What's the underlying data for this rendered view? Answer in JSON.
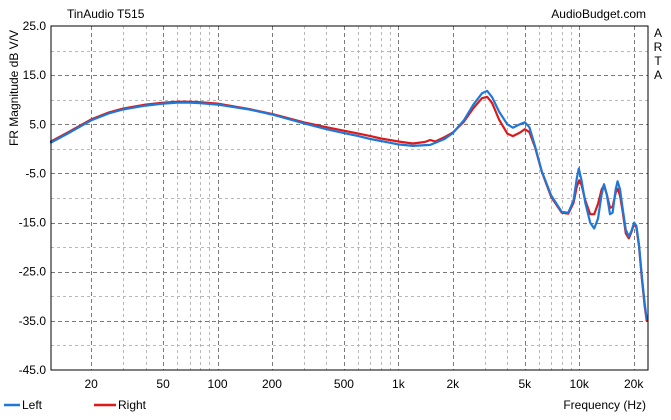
{
  "chart_data": {
    "type": "line",
    "title": "TinAudio T515",
    "source": "AudioBudget.com",
    "side_label": "ARTA",
    "xlabel": "Frequency (Hz)",
    "ylabel": "FR Magnitude dB V/V",
    "x_scale": "log",
    "xlim": [
      12,
      24000
    ],
    "ylim": [
      -45,
      25
    ],
    "x_ticks": [
      {
        "value": 20,
        "label": "20"
      },
      {
        "value": 50,
        "label": "50"
      },
      {
        "value": 100,
        "label": "100"
      },
      {
        "value": 200,
        "label": "200"
      },
      {
        "value": 500,
        "label": "500"
      },
      {
        "value": 1000,
        "label": "1k"
      },
      {
        "value": 2000,
        "label": "2k"
      },
      {
        "value": 5000,
        "label": "5k"
      },
      {
        "value": 10000,
        "label": "10k"
      },
      {
        "value": 20000,
        "label": "20k"
      }
    ],
    "y_ticks": [
      25.0,
      15.0,
      5.0,
      -5.0,
      -15.0,
      -25.0,
      -35.0,
      -45.0
    ],
    "y_tick_labels": [
      "25.0",
      "15.0",
      "5.0",
      "-5.0",
      "-15.0",
      "-25.0",
      "-35.0",
      "-45.0"
    ],
    "grid": true,
    "legend_position": "bottom-left",
    "series": [
      {
        "name": "Left",
        "color": "#1f78d8",
        "points": [
          [
            12,
            1.3
          ],
          [
            15,
            3.2
          ],
          [
            20,
            5.8
          ],
          [
            25,
            7.2
          ],
          [
            30,
            8.0
          ],
          [
            40,
            8.8
          ],
          [
            50,
            9.2
          ],
          [
            60,
            9.4
          ],
          [
            70,
            9.4
          ],
          [
            80,
            9.3
          ],
          [
            100,
            9.0
          ],
          [
            150,
            8.0
          ],
          [
            200,
            7.0
          ],
          [
            300,
            5.2
          ],
          [
            400,
            4.0
          ],
          [
            500,
            3.2
          ],
          [
            600,
            2.6
          ],
          [
            700,
            2.0
          ],
          [
            800,
            1.6
          ],
          [
            1000,
            0.9
          ],
          [
            1200,
            0.6
          ],
          [
            1500,
            0.8
          ],
          [
            1800,
            2.0
          ],
          [
            2000,
            3.2
          ],
          [
            2300,
            5.8
          ],
          [
            2600,
            9.0
          ],
          [
            2900,
            11.3
          ],
          [
            3100,
            11.8
          ],
          [
            3300,
            10.5
          ],
          [
            3600,
            7.6
          ],
          [
            4000,
            5.0
          ],
          [
            4300,
            4.3
          ],
          [
            4700,
            5.0
          ],
          [
            5000,
            5.4
          ],
          [
            5300,
            4.4
          ],
          [
            5700,
            0.5
          ],
          [
            6200,
            -4.5
          ],
          [
            7000,
            -9.5
          ],
          [
            8000,
            -12.8
          ],
          [
            8700,
            -13.0
          ],
          [
            9300,
            -10.5
          ],
          [
            9700,
            -6.0
          ],
          [
            9950,
            -4.0
          ],
          [
            10300,
            -6.5
          ],
          [
            10800,
            -11.0
          ],
          [
            11500,
            -15.0
          ],
          [
            12100,
            -16.2
          ],
          [
            12700,
            -14.2
          ],
          [
            13300,
            -9.3
          ],
          [
            13700,
            -7.2
          ],
          [
            14200,
            -9.3
          ],
          [
            14800,
            -13.3
          ],
          [
            15300,
            -13.0
          ],
          [
            15900,
            -8.2
          ],
          [
            16300,
            -6.6
          ],
          [
            16800,
            -8.2
          ],
          [
            17400,
            -12.2
          ],
          [
            18100,
            -16.5
          ],
          [
            18800,
            -17.8
          ],
          [
            19400,
            -16.8
          ],
          [
            20100,
            -15.0
          ],
          [
            20700,
            -15.7
          ],
          [
            21400,
            -19.5
          ],
          [
            22200,
            -26.0
          ],
          [
            23000,
            -31.5
          ],
          [
            23600,
            -34.6
          ]
        ]
      },
      {
        "name": "Right",
        "color": "#dd1a1a",
        "points": [
          [
            12,
            1.5
          ],
          [
            15,
            3.4
          ],
          [
            20,
            6.0
          ],
          [
            25,
            7.4
          ],
          [
            30,
            8.2
          ],
          [
            40,
            9.0
          ],
          [
            50,
            9.4
          ],
          [
            60,
            9.6
          ],
          [
            70,
            9.6
          ],
          [
            80,
            9.5
          ],
          [
            100,
            9.2
          ],
          [
            150,
            8.1
          ],
          [
            200,
            7.1
          ],
          [
            300,
            5.4
          ],
          [
            400,
            4.4
          ],
          [
            500,
            3.7
          ],
          [
            600,
            3.1
          ],
          [
            700,
            2.6
          ],
          [
            800,
            2.1
          ],
          [
            1000,
            1.5
          ],
          [
            1200,
            1.1
          ],
          [
            1400,
            1.4
          ],
          [
            1500,
            1.8
          ],
          [
            1600,
            1.5
          ],
          [
            1800,
            2.4
          ],
          [
            2000,
            3.3
          ],
          [
            2300,
            5.5
          ],
          [
            2600,
            8.3
          ],
          [
            2900,
            10.3
          ],
          [
            3100,
            10.6
          ],
          [
            3300,
            9.3
          ],
          [
            3600,
            6.0
          ],
          [
            4000,
            3.1
          ],
          [
            4300,
            2.6
          ],
          [
            4700,
            3.3
          ],
          [
            5000,
            4.0
          ],
          [
            5300,
            3.4
          ],
          [
            5700,
            0.3
          ],
          [
            6200,
            -4.6
          ],
          [
            7000,
            -9.8
          ],
          [
            8000,
            -13.0
          ],
          [
            8700,
            -13.2
          ],
          [
            9300,
            -11.0
          ],
          [
            9700,
            -7.7
          ],
          [
            10000,
            -6.4
          ],
          [
            10300,
            -7.4
          ],
          [
            10800,
            -10.5
          ],
          [
            11500,
            -13.3
          ],
          [
            12100,
            -13.3
          ],
          [
            12700,
            -11.2
          ],
          [
            13300,
            -8.3
          ],
          [
            13700,
            -7.4
          ],
          [
            14200,
            -9.3
          ],
          [
            14800,
            -12.0
          ],
          [
            15300,
            -11.8
          ],
          [
            15900,
            -8.9
          ],
          [
            16300,
            -8.1
          ],
          [
            16800,
            -9.5
          ],
          [
            17400,
            -12.8
          ],
          [
            18100,
            -17.2
          ],
          [
            18800,
            -18.2
          ],
          [
            19400,
            -17.0
          ],
          [
            20100,
            -15.3
          ],
          [
            20700,
            -16.0
          ],
          [
            21400,
            -19.8
          ],
          [
            22200,
            -26.5
          ],
          [
            23000,
            -32.0
          ],
          [
            23600,
            -35.0
          ]
        ]
      }
    ]
  }
}
